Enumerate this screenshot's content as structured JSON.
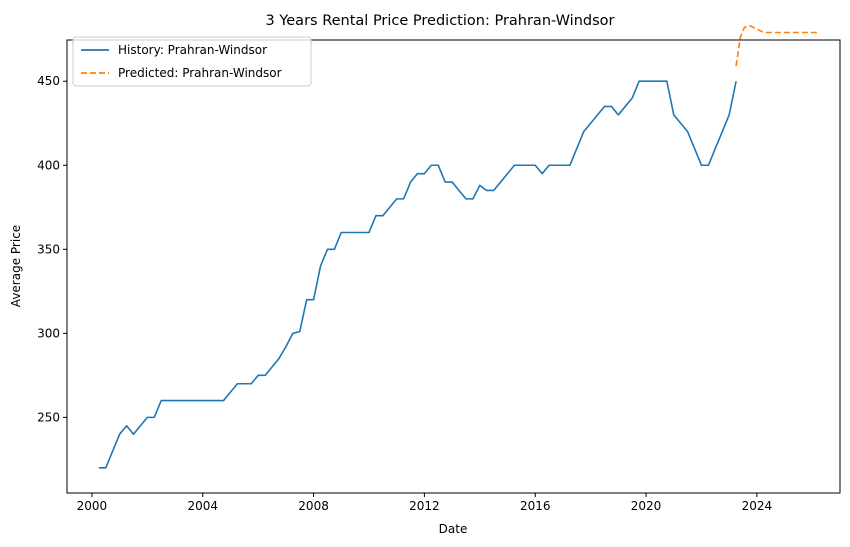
{
  "chart_data": {
    "type": "line",
    "title": "3 Years Rental Price Prediction: Prahran-Windsor",
    "xlabel": "Date",
    "ylabel": "Average Price",
    "xlim": [
      1999.1,
      2027.0
    ],
    "ylim": [
      205,
      490
    ],
    "x_ticks": [
      2000,
      2004,
      2008,
      2012,
      2016,
      2020,
      2024
    ],
    "x_tick_labels": [
      "2000",
      "2004",
      "2008",
      "2012",
      "2016",
      "2020",
      "2024"
    ],
    "y_ticks": [
      250,
      300,
      350,
      400,
      450
    ],
    "y_tick_labels": [
      "250",
      "300",
      "350",
      "400",
      "450"
    ],
    "grid": false,
    "legend_position": "upper-left",
    "series": [
      {
        "name": "History: Prahran-Windsor",
        "color": "#1f77b4",
        "style": "solid",
        "x": [
          2000.25,
          2000.5,
          2000.75,
          2001.0,
          2001.25,
          2001.5,
          2001.75,
          2002.0,
          2002.25,
          2002.5,
          2002.75,
          2003.0,
          2003.25,
          2003.5,
          2003.75,
          2004.0,
          2004.25,
          2004.5,
          2004.75,
          2005.0,
          2005.25,
          2005.5,
          2005.75,
          2006.0,
          2006.25,
          2006.5,
          2006.75,
          2007.0,
          2007.25,
          2007.5,
          2007.75,
          2008.0,
          2008.25,
          2008.5,
          2008.75,
          2009.0,
          2009.25,
          2009.5,
          2009.75,
          2010.0,
          2010.25,
          2010.5,
          2010.75,
          2011.0,
          2011.25,
          2011.5,
          2011.75,
          2012.0,
          2012.25,
          2012.5,
          2012.75,
          2013.0,
          2013.25,
          2013.5,
          2013.75,
          2014.0,
          2014.25,
          2014.5,
          2014.75,
          2015.0,
          2015.25,
          2015.5,
          2015.75,
          2016.0,
          2016.25,
          2016.5,
          2016.75,
          2017.0,
          2017.25,
          2017.5,
          2017.75,
          2018.0,
          2018.25,
          2018.5,
          2018.75,
          2019.0,
          2019.25,
          2019.5,
          2019.75,
          2020.0,
          2020.25,
          2020.5,
          2020.75,
          2021.0,
          2021.25,
          2021.5,
          2021.75,
          2022.0,
          2022.25,
          2022.5,
          2022.75,
          2023.0,
          2023.25
        ],
        "y": [
          220,
          220,
          230,
          240,
          245,
          240,
          245,
          250,
          250,
          260,
          260,
          260,
          260,
          260,
          260,
          260,
          260,
          260,
          260,
          265,
          270,
          270,
          270,
          275,
          275,
          280,
          285,
          292,
          300,
          301,
          320,
          320,
          340,
          350,
          350,
          360,
          360,
          360,
          360,
          360,
          370,
          370,
          375,
          380,
          380,
          390,
          395,
          395,
          400,
          400,
          390,
          390,
          385,
          380,
          380,
          388,
          385,
          385,
          390,
          395,
          400,
          400,
          400,
          400,
          395,
          400,
          400,
          400,
          400,
          410,
          420,
          425,
          430,
          435,
          435,
          430,
          435,
          440,
          450,
          450,
          450,
          450,
          450,
          430,
          425,
          420,
          410,
          400,
          400,
          410,
          420,
          430,
          450
        ]
      },
      {
        "name": "Predicted: Prahran-Windsor",
        "color": "#ff7f0e",
        "style": "dashed",
        "x": [
          2023.25,
          2023.4,
          2023.55,
          2023.75,
          2024.0,
          2024.25,
          2024.5,
          2024.75,
          2025.0,
          2025.25,
          2025.5,
          2025.75,
          2026.0,
          2026.25
        ],
        "y": [
          459,
          476,
          482,
          483,
          481,
          479,
          479,
          479,
          479,
          479,
          479,
          479,
          479,
          479
        ]
      }
    ]
  }
}
